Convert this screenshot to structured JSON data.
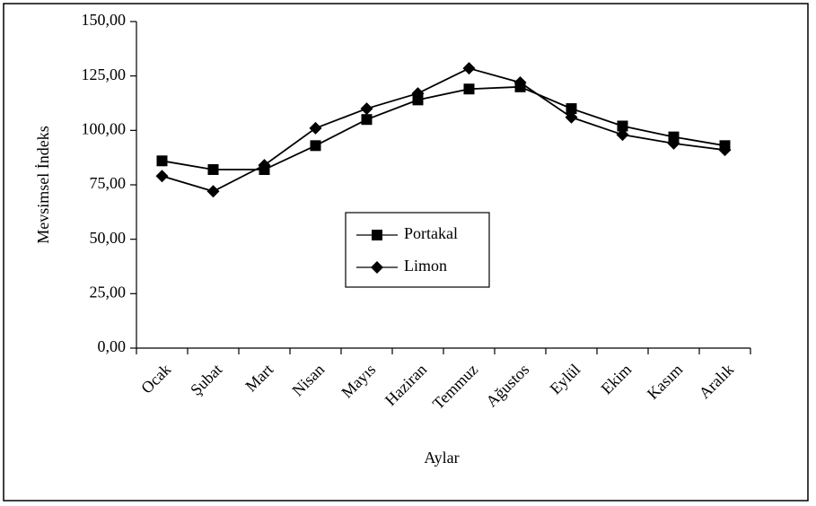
{
  "chart_data": {
    "type": "line",
    "x_label": "Aylar",
    "y_label": "Mevsimsel İndeks",
    "categories": [
      "Ocak",
      "Şubat",
      "Mart",
      "Nisan",
      "Mayıs",
      "Haziran",
      "Temmuz",
      "Ağustos",
      "Eylül",
      "Ekim",
      "Kasım",
      "Aralık"
    ],
    "series": [
      {
        "name": "Portakal",
        "color": "#000000",
        "marker": "square",
        "values": [
          86,
          82,
          82,
          93,
          105,
          114,
          119,
          120,
          110,
          102,
          97,
          93
        ]
      },
      {
        "name": "Limon",
        "color": "#000000",
        "marker": "diamond",
        "values": [
          79,
          72,
          84,
          101,
          110,
          117,
          128.5,
          122,
          106,
          98,
          94,
          91
        ]
      }
    ],
    "ylim": [
      0,
      150
    ],
    "yticks": [
      {
        "value": 0,
        "label": "0,00"
      },
      {
        "value": 25,
        "label": "25,00"
      },
      {
        "value": 50,
        "label": "50,00"
      },
      {
        "value": 75,
        "label": "75,00"
      },
      {
        "value": 100,
        "label": "100,00"
      },
      {
        "value": 125,
        "label": "125,00"
      },
      {
        "value": 150,
        "label": "150,00"
      }
    ],
    "grid": false,
    "legend": "center"
  }
}
